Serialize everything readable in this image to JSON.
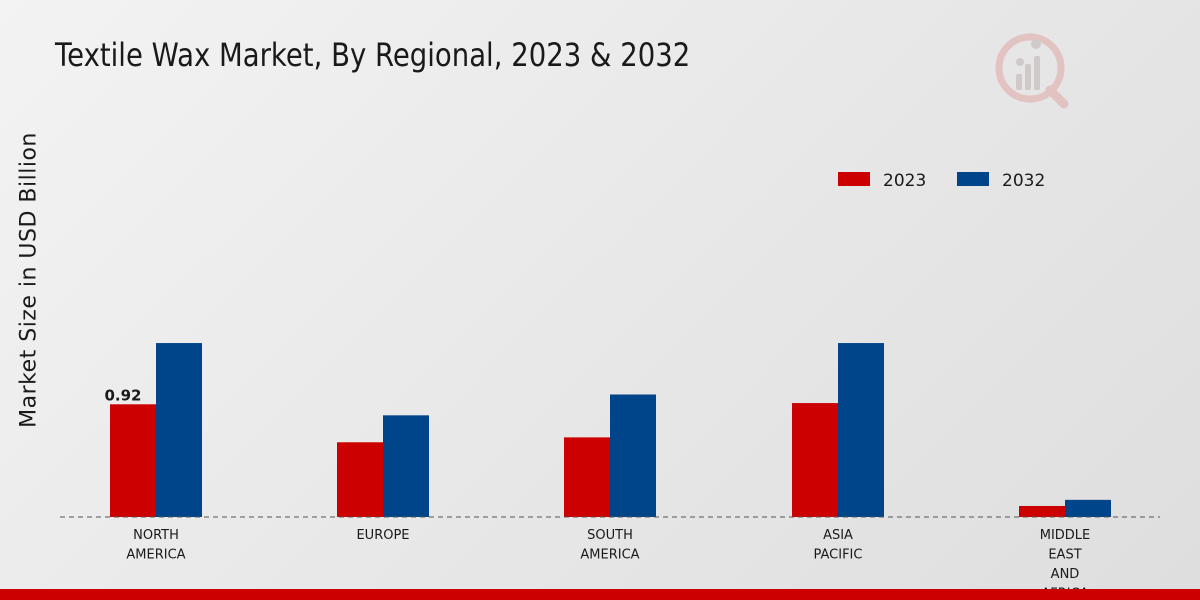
{
  "chart_data": {
    "type": "bar",
    "title": "Textile Wax Market, By Regional, 2023 & 2032",
    "xlabel": "",
    "ylabel": "Market Size in USD Billion",
    "ylim": [
      0,
      2.0
    ],
    "grid": false,
    "legend_position": "top-right",
    "categories": [
      [
        "NORTH",
        "AMERICA"
      ],
      [
        "EUROPE"
      ],
      [
        "SOUTH",
        "AMERICA"
      ],
      [
        "ASIA",
        "PACIFIC"
      ],
      [
        "MIDDLE",
        "EAST",
        "AND",
        "AFRICA"
      ]
    ],
    "series": [
      {
        "name": "2023",
        "color": "#cc0000",
        "values": [
          0.92,
          0.61,
          0.65,
          0.93,
          0.09
        ]
      },
      {
        "name": "2032",
        "color": "#004589",
        "values": [
          1.42,
          0.83,
          1.0,
          1.42,
          0.14
        ]
      }
    ],
    "annotations": [
      {
        "series": 0,
        "category": 0,
        "text": "0.92"
      }
    ]
  },
  "colors": {
    "bottom_bar": "#cc0000",
    "baseline": "#555555",
    "logo_accent": "#d9a0a0"
  }
}
